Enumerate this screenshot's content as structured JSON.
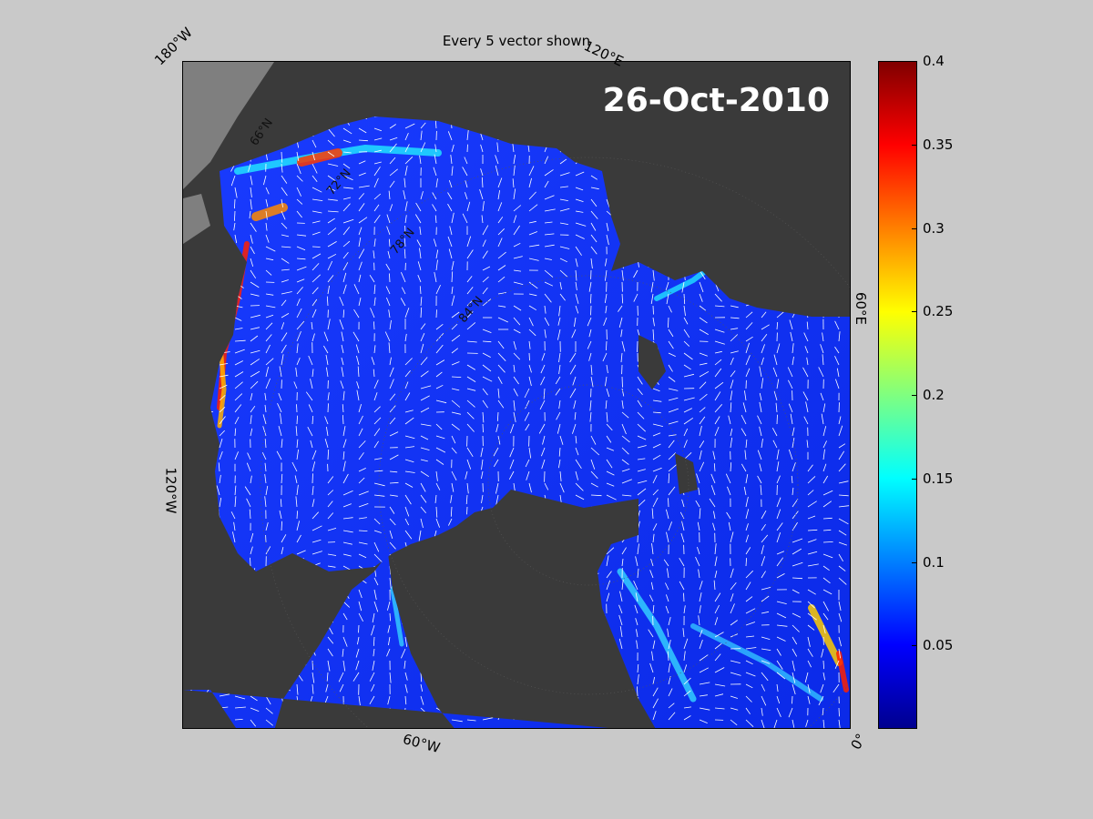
{
  "title": "Every 5 vector shown",
  "date": "26-Oct-2010",
  "lon_labels": [
    "180°W",
    "120°E",
    "60°E",
    "120°W",
    "60°W",
    "0°"
  ],
  "lat_labels": [
    "66°N",
    "72°N",
    "78°N",
    "84°N"
  ],
  "colorbar": {
    "range": [
      0,
      0.4
    ],
    "colormap": "jet",
    "ticks": [
      "0.4",
      "0.35",
      "0.3",
      "0.25",
      "0.2",
      "0.15",
      "0.1",
      "0.05"
    ],
    "tick_values": [
      0.4,
      0.35,
      0.3,
      0.25,
      0.2,
      0.15,
      0.1,
      0.05
    ]
  },
  "colors": {
    "ocean_low": "#1030ff",
    "land": "#3a3a3a",
    "no_data": "#7f7f7f",
    "vectors": "#ffffff",
    "background": "#c9c9c9"
  }
}
